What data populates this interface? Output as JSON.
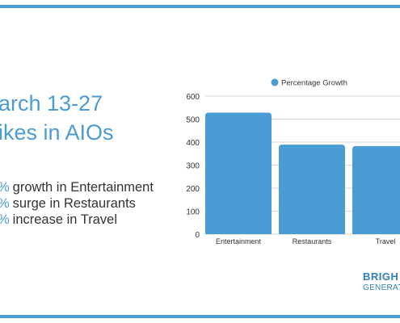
{
  "slide": {
    "heading_line1": "arch 13-27",
    "heading_line2": "ikes in AIOs",
    "stats": [
      {
        "marker": "%",
        "text": "growth in Entertainment"
      },
      {
        "marker": "%",
        "text": "surge in Restaurants"
      },
      {
        "marker": "%",
        "text": "increase in Travel"
      }
    ],
    "logo_line1": "BRIGH",
    "logo_line2": "GENERAT"
  },
  "colors": {
    "accent": "#4b9bd5",
    "bar": "#4b9bd5",
    "logo": "#2f7fb8",
    "text": "#333333",
    "grid": "#d9d9d9"
  },
  "chart_data": {
    "type": "bar",
    "categories": [
      "Entertainment",
      "Restaurants",
      "Travel"
    ],
    "series": [
      {
        "name": "Percentage Growth",
        "values": [
          528,
          389,
          383
        ]
      }
    ],
    "ylim": [
      0,
      600
    ],
    "yticks": [
      0,
      100,
      200,
      300,
      400,
      500,
      600
    ],
    "legend": "top",
    "grid": true,
    "title": "",
    "xlabel": "",
    "ylabel": ""
  }
}
